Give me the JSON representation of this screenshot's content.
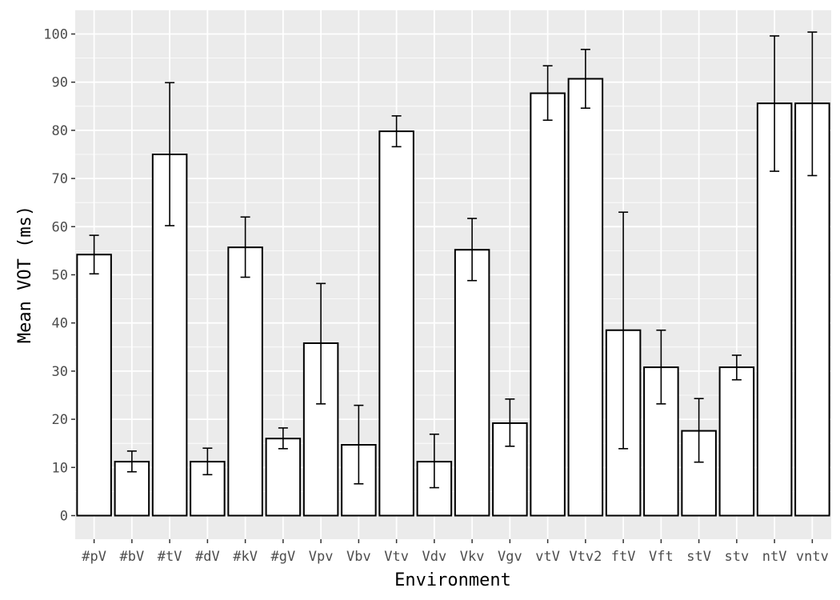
{
  "chart_data": {
    "type": "bar",
    "xlabel": "Environment",
    "ylabel": "Mean VOT (ms)",
    "categories": [
      "#pV",
      "#bV",
      "#tV",
      "#dV",
      "#kV",
      "#gV",
      "Vpv",
      "Vbv",
      "Vtv",
      "Vdv",
      "Vkv",
      "Vgv",
      "vtV",
      "Vtv2",
      "ftV",
      "Vft",
      "stV",
      "stv",
      "ntV",
      "vntv"
    ],
    "values": [
      54.2,
      11.2,
      75.0,
      11.2,
      55.7,
      16.0,
      35.8,
      14.7,
      79.8,
      11.2,
      55.2,
      19.2,
      87.7,
      90.7,
      38.5,
      30.8,
      17.6,
      30.8,
      85.6,
      85.6
    ],
    "error_low": [
      50.2,
      9.1,
      60.2,
      8.5,
      49.5,
      13.9,
      23.2,
      6.6,
      76.6,
      5.8,
      48.8,
      14.4,
      82.1,
      84.6,
      13.9,
      23.2,
      11.1,
      28.2,
      71.5,
      70.6
    ],
    "error_high": [
      58.2,
      13.4,
      89.9,
      14.0,
      62.0,
      18.2,
      48.2,
      22.9,
      83.0,
      16.9,
      61.7,
      24.2,
      93.4,
      96.8,
      63.0,
      38.5,
      24.3,
      33.3,
      99.6,
      100.4
    ],
    "y_ticks": [
      0,
      10,
      20,
      30,
      40,
      50,
      60,
      70,
      80,
      90,
      100
    ],
    "ylim": [
      -5,
      105
    ],
    "grid": true,
    "bar_fill": "#ffffff",
    "bar_stroke": "#000000",
    "panel_background": "#ebebeb",
    "grid_color": "#ffffff"
  }
}
